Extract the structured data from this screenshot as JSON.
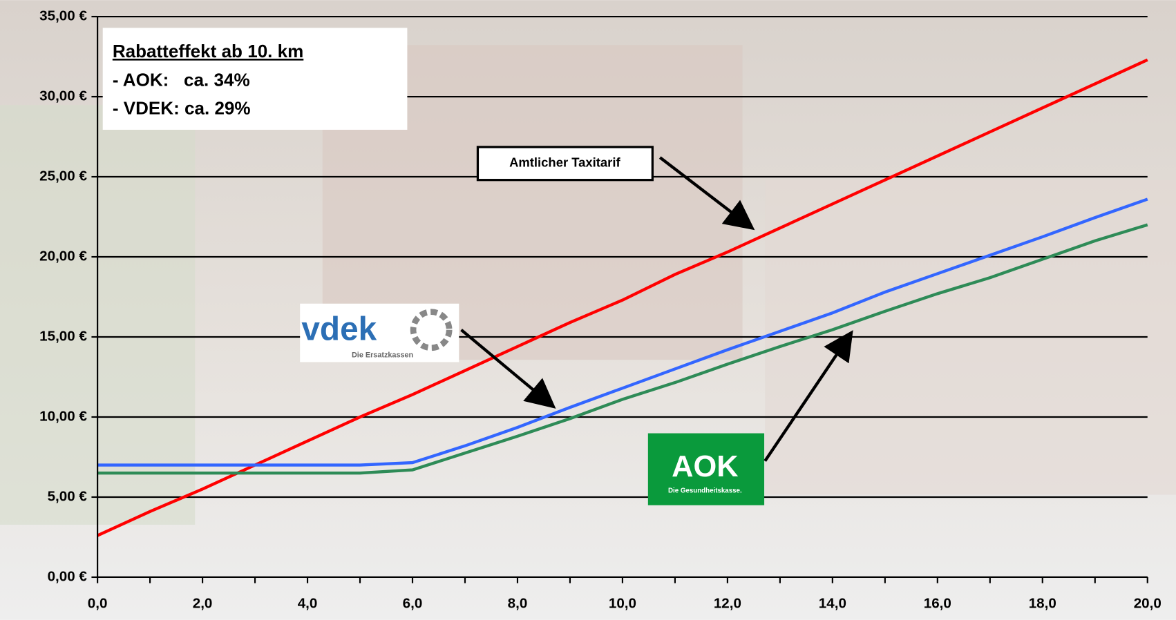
{
  "chart_data": {
    "type": "line",
    "x": [
      0,
      1,
      2,
      3,
      4,
      5,
      6,
      7,
      8,
      9,
      10,
      11,
      12,
      13,
      14,
      15,
      16,
      17,
      18,
      19,
      20
    ],
    "series": [
      {
        "name": "Amtlicher Taxitarif",
        "color": "#ff0000",
        "values": [
          2.6,
          4.1,
          5.5,
          7.0,
          8.5,
          10.0,
          11.4,
          12.9,
          14.4,
          15.9,
          17.3,
          18.9,
          20.3,
          21.8,
          23.3,
          24.8,
          26.3,
          27.8,
          29.3,
          30.8,
          32.3
        ]
      },
      {
        "name": "vdek",
        "color": "#3366ff",
        "values": [
          7.0,
          7.0,
          7.0,
          7.0,
          7.0,
          7.0,
          7.15,
          8.2,
          9.35,
          10.6,
          11.8,
          13.0,
          14.2,
          15.35,
          16.5,
          17.8,
          18.95,
          20.1,
          21.25,
          22.45,
          23.6
        ]
      },
      {
        "name": "AOK",
        "color": "#2e8b57",
        "values": [
          6.5,
          6.5,
          6.5,
          6.5,
          6.5,
          6.5,
          6.7,
          7.75,
          8.8,
          9.9,
          11.1,
          12.15,
          13.3,
          14.4,
          15.45,
          16.6,
          17.7,
          18.7,
          19.85,
          21.0,
          22.0
        ]
      }
    ],
    "xlim": [
      0,
      20
    ],
    "xticks": [
      {
        "value": 0,
        "label": "0,0"
      },
      {
        "value": 2,
        "label": "2,0"
      },
      {
        "value": 4,
        "label": "4,0"
      },
      {
        "value": 6,
        "label": "6,0"
      },
      {
        "value": 8,
        "label": "8,0"
      },
      {
        "value": 10,
        "label": "10,0"
      },
      {
        "value": 12,
        "label": "12,0"
      },
      {
        "value": 14,
        "label": "14,0"
      },
      {
        "value": 16,
        "label": "16,0"
      },
      {
        "value": 18,
        "label": "18,0"
      },
      {
        "value": 20,
        "label": "20,0"
      }
    ],
    "xminor_ticks": [
      1,
      3,
      5,
      7,
      9,
      11,
      13,
      15,
      17,
      19
    ],
    "ylim": [
      0,
      35
    ],
    "yticks": [
      {
        "value": 0,
        "label": "0,00 €"
      },
      {
        "value": 5,
        "label": "5,00 €"
      },
      {
        "value": 10,
        "label": "10,00 €"
      },
      {
        "value": 15,
        "label": "15,00 €"
      },
      {
        "value": 20,
        "label": "20,00 €"
      },
      {
        "value": 25,
        "label": "25,00 €"
      },
      {
        "value": 30,
        "label": "30,00 €"
      },
      {
        "value": 35,
        "label": "35,00 €"
      }
    ],
    "grid": true,
    "annotations": [
      "Rabatteffekt ab 10. km",
      "- AOK:   ca. 34%",
      "- VDEK: ca. 29%"
    ],
    "vdek_subtitle": "Die Ersatzkassen",
    "aok_subtitle": "Die Gesundheitskasse."
  }
}
